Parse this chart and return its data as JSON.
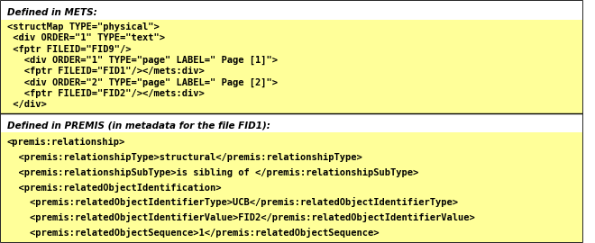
{
  "fig_width": 6.6,
  "fig_height": 2.7,
  "dpi": 100,
  "bg_color": "#ffffff",
  "yellow_color": "#ffff99",
  "border_color": "#000000",
  "section1_header": "Defined in METS:",
  "section1_lines": [
    "<structMap TYPE=\"physical\">",
    " <div ORDER=\"1\" TYPE=\"text\">",
    " <fptr FILEID=\"FID9\"/>",
    "   <div ORDER=\"1\" TYPE=\"page\" LABEL=\" Page [1]\">",
    "   <fptr FILEID=\"FID1\"/></mets:div>",
    "   <div ORDER=\"2\" TYPE=\"page\" LABEL=\" Page [2]\">",
    "   <fptr FILEID=\"FID2\"/></mets:div>",
    " </div>"
  ],
  "section2_header": "Defined in PREMIS (in metadata for the file FID1):",
  "section2_lines": [
    "<premis:relationship>",
    "  <premis:relationshipType>structural</premis:relationshipType>",
    "  <premis:relationshipSubType>is sibling of </premis:relationshipSubType>",
    "  <premis:relatedObjectIdentification>",
    "    <premis:relatedObjectIdentifierType>UCB</premis:relatedObjectIdentifierType>",
    "    <premis:relatedObjectIdentifierValue>FID2</premis:relatedObjectIdentifierValue>",
    "    <premis:relatedObjectSequence>1</premis:relatedObjectSequence>"
  ],
  "font_size": 7.5,
  "header_font_size": 7.5
}
